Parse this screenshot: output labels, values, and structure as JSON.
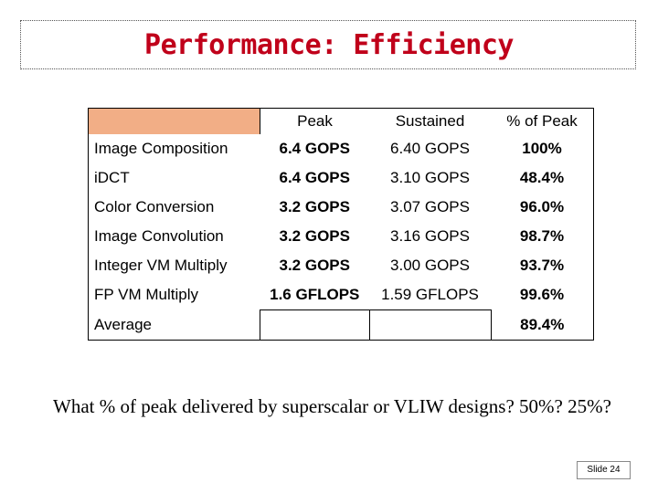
{
  "title": "Performance: Efficiency",
  "table": {
    "headers": [
      "",
      "Peak",
      "Sustained",
      "% of Peak"
    ],
    "rows": [
      {
        "name": "Image Composition",
        "peak": "6.4 GOPS",
        "sustained": "6.40 GOPS",
        "pct": "100%"
      },
      {
        "name": "iDCT",
        "peak": "6.4 GOPS",
        "sustained": "3.10 GOPS",
        "pct": "48.4%"
      },
      {
        "name": "Color Conversion",
        "peak": "3.2 GOPS",
        "sustained": "3.07 GOPS",
        "pct": "96.0%"
      },
      {
        "name": "Image Convolution",
        "peak": "3.2 GOPS",
        "sustained": "3.16 GOPS",
        "pct": "98.7%"
      },
      {
        "name": "Integer VM Multiply",
        "peak": "3.2 GOPS",
        "sustained": "3.00 GOPS",
        "pct": "93.7%"
      },
      {
        "name": "FP VM Multiply",
        "peak": "1.6 GFLOPS",
        "sustained": "1.59 GFLOPS",
        "pct": "99.6%"
      },
      {
        "name": "Average",
        "peak": "",
        "sustained": "",
        "pct": "89.4%"
      }
    ]
  },
  "question": "What % of peak delivered by superscalar or VLIW designs? 50%? 25%?",
  "slide_label": "Slide 24",
  "colors": {
    "title": "#c0001a",
    "header_fill": "#f2ae86"
  }
}
